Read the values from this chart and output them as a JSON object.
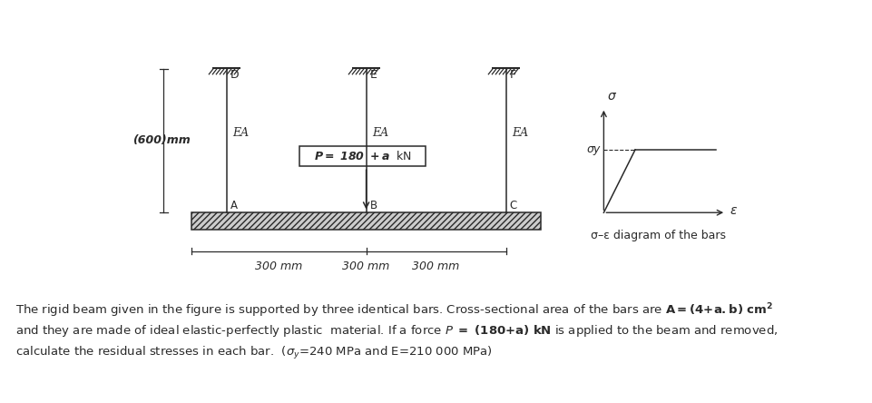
{
  "background_color": "#ffffff",
  "bar_label_height": "(600)mm",
  "bar_labels": [
    "EA",
    "EA",
    "EA"
  ],
  "bar_names_top": [
    "D",
    "E",
    "F"
  ],
  "bar_names_bottom": [
    "A",
    "B",
    "C"
  ],
  "dimension_labels": [
    "300 mm",
    "300 mm",
    "300 mm"
  ],
  "sigma_y_label": "σy",
  "sigma_label": "σ",
  "epsilon_label": "ε",
  "diagram_label": "σ–ε diagram of the bars",
  "line_color": "#2a2a2a"
}
